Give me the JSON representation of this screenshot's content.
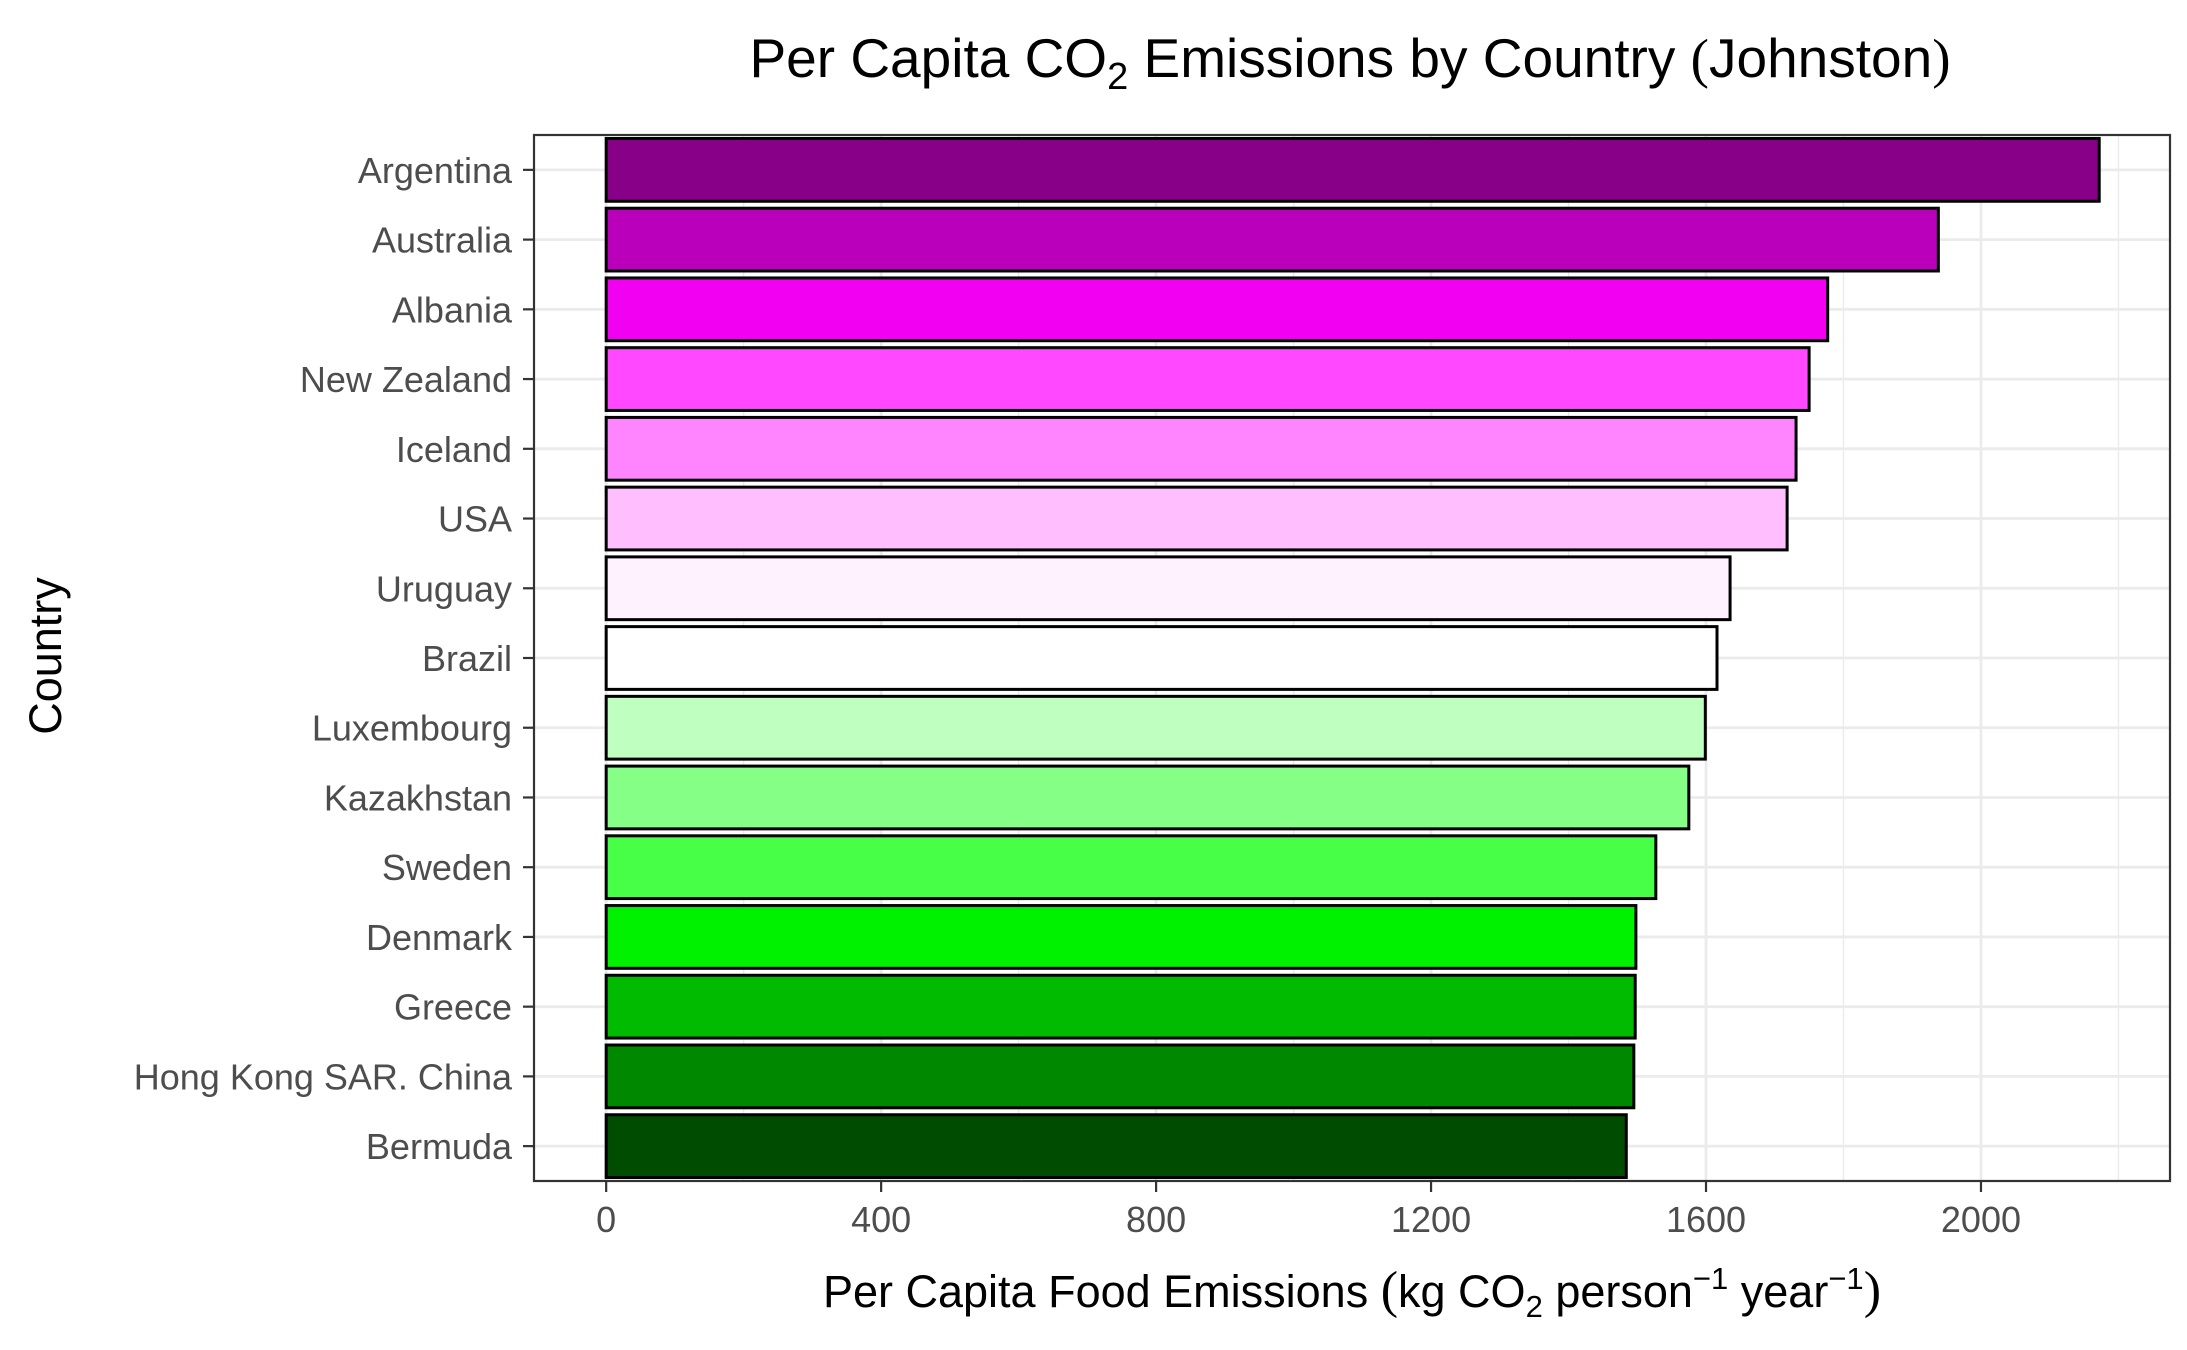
{
  "chart_data": {
    "type": "bar",
    "orientation": "horizontal",
    "title_parts": {
      "pre": "Per Capita CO",
      "sub": "2",
      "post": " Emissions by Country ",
      "paren_open": "(",
      "paren_text": "Johnston",
      "paren_close": ")"
    },
    "xlabel_parts": {
      "pre": "Per Capita Food Emissions ",
      "paren_open": "(",
      "kg": "kg CO",
      "sub": "2",
      "person": " person",
      "sup1": "−1",
      "year": " year",
      "sup2": "−1",
      "paren_close": ")"
    },
    "ylabel": "Country",
    "categories": [
      "Argentina",
      "Australia",
      "Albania",
      "New Zealand",
      "Iceland",
      "USA",
      "Uruguay",
      "Brazil",
      "Luxembourg",
      "Kazakhstan",
      "Sweden",
      "Denmark",
      "Greece",
      "Hong Kong SAR. China",
      "Bermuda"
    ],
    "values": [
      2172,
      1938,
      1777,
      1750,
      1731,
      1718,
      1635,
      1616,
      1599,
      1575,
      1527,
      1498,
      1497,
      1495,
      1484
    ],
    "colors": [
      "#880088",
      "#BB00BB",
      "#F200F2",
      "#FF48FF",
      "#FF85FF",
      "#FFBFFF",
      "#FFF2FF",
      "#FFFFFF",
      "#BFFFBF",
      "#85FF85",
      "#48FF48",
      "#00F200",
      "#00BB00",
      "#008800",
      "#004C00"
    ],
    "xlim": [
      -105,
      2275
    ],
    "xticks": [
      0,
      400,
      800,
      1200,
      1600,
      2000
    ],
    "xtick_labels": [
      "0",
      "400",
      "800",
      "1200",
      "1600",
      "2000"
    ],
    "grid": true,
    "legend": "none"
  }
}
